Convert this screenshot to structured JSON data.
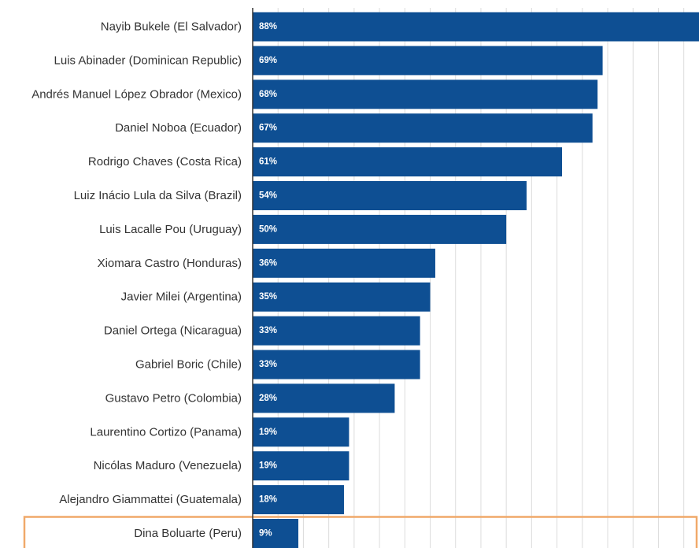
{
  "colors": {
    "bar": "#0e4f93",
    "grid": "#dcdcdc",
    "axis": "#333333",
    "highlight_border": "#f0a96a"
  },
  "chart_data": {
    "type": "bar",
    "orientation": "horizontal",
    "categories": [
      "Nayib Bukele (El Salvador)",
      "Luis Abinader (Dominican Republic)",
      "Andrés Manuel López Obrador (Mexico)",
      "Daniel Noboa (Ecuador)",
      "Rodrigo Chaves (Costa Rica)",
      "Luiz Inácio Lula da Silva (Brazil)",
      "Luis Lacalle Pou (Uruguay)",
      "Xiomara Castro (Honduras)",
      "Javier Milei (Argentina)",
      "Daniel Ortega (Nicaragua)",
      "Gabriel Boric (Chile)",
      "Gustavo Petro (Colombia)",
      "Laurentino Cortizo (Panama)",
      "Nicólas Maduro (Venezuela)",
      "Alejandro Giammattei (Guatemala)",
      "Dina Boluarte (Peru)"
    ],
    "values": [
      88,
      69,
      68,
      67,
      61,
      54,
      50,
      36,
      35,
      33,
      33,
      28,
      19,
      19,
      18,
      9
    ],
    "value_labels": [
      "88%",
      "69%",
      "68%",
      "67%",
      "61%",
      "54%",
      "50%",
      "36%",
      "35%",
      "33%",
      "33%",
      "28%",
      "19%",
      "19%",
      "18%",
      "9%"
    ],
    "xlim": [
      0,
      88
    ],
    "grid": true,
    "highlighted_category": "Dina Boluarte (Peru)"
  }
}
